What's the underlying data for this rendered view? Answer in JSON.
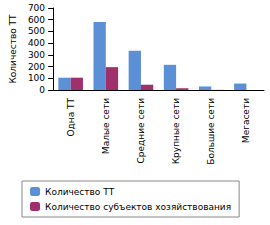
{
  "chart_data": {
    "type": "bar",
    "categories": [
      "Одна ТТ",
      "Малые сети",
      "Средние сети",
      "Крупные сети",
      "Большие сети",
      "Мегасети"
    ],
    "y_label": "Количество ТТ",
    "series": [
      {
        "name": "Количество ТТ",
        "color": "#5b8fd6",
        "values": [
          105,
          580,
          335,
          215,
          30,
          55
        ]
      },
      {
        "name": "Количество субъектов хозяйствования",
        "color": "#a0306c",
        "values": [
          105,
          195,
          45,
          15,
          1,
          1
        ]
      }
    ],
    "ylim": [
      0,
      700
    ],
    "yticks": [
      0,
      100,
      200,
      300,
      400,
      500,
      600,
      700
    ],
    "grid": false,
    "legend": "bottom"
  }
}
